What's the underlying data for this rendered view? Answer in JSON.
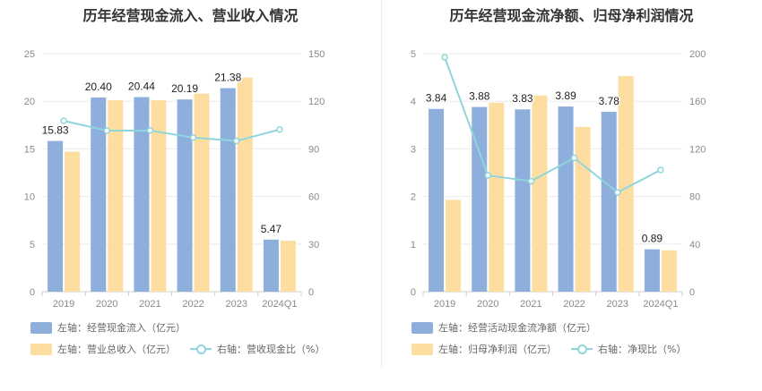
{
  "chart_data": [
    {
      "type": "bar",
      "title": "历年经营现金流入、营业收入情况",
      "categories": [
        "2019",
        "2020",
        "2021",
        "2022",
        "2023",
        "2024Q1"
      ],
      "left_axis": {
        "min": 0,
        "max": 25,
        "ticks": [
          0,
          5,
          10,
          15,
          20,
          25
        ]
      },
      "right_axis": {
        "min": 0,
        "max": 150,
        "ticks": [
          0,
          30,
          60,
          90,
          120,
          150
        ]
      },
      "series": [
        {
          "name": "左轴：经营现金流入（亿元）",
          "kind": "bar",
          "axis": "left",
          "color": "#8eaedc",
          "values": [
            15.83,
            20.4,
            20.44,
            20.19,
            21.38,
            5.47
          ],
          "labels": [
            "15.83",
            "20.40",
            "20.44",
            "20.19",
            "21.38",
            "5.47"
          ]
        },
        {
          "name": "左轴：营业总收入（亿元）",
          "kind": "bar",
          "axis": "left",
          "color": "#fddda0",
          "values": [
            14.7,
            20.1,
            20.1,
            20.8,
            22.5,
            5.35
          ]
        },
        {
          "name": "右轴：营收现金比（%）",
          "kind": "line",
          "axis": "right",
          "color": "#8fd6dc",
          "values": [
            107.7,
            101.5,
            101.6,
            97.1,
            95.0,
            102.2
          ]
        }
      ]
    },
    {
      "type": "bar",
      "title": "历年经营现金流净额、归母净利润情况",
      "categories": [
        "2019",
        "2020",
        "2021",
        "2022",
        "2023",
        "2024Q1"
      ],
      "left_axis": {
        "min": 0,
        "max": 5,
        "ticks": [
          0,
          1,
          2,
          3,
          4,
          5
        ]
      },
      "right_axis": {
        "min": 0,
        "max": 200,
        "ticks": [
          0,
          40,
          80,
          120,
          160,
          200
        ]
      },
      "series": [
        {
          "name": "左轴：经营活动现金流净额（亿元）",
          "kind": "bar",
          "axis": "left",
          "color": "#8eaedc",
          "values": [
            3.84,
            3.88,
            3.83,
            3.89,
            3.78,
            0.89
          ],
          "labels": [
            "3.84",
            "3.88",
            "3.83",
            "3.89",
            "3.78",
            "0.89"
          ]
        },
        {
          "name": "左轴：归母净利润（亿元）",
          "kind": "bar",
          "axis": "left",
          "color": "#fddda0",
          "values": [
            1.93,
            3.97,
            4.12,
            3.46,
            4.53,
            0.87
          ]
        },
        {
          "name": "右轴：净现比（%）",
          "kind": "line",
          "axis": "right",
          "color": "#8fd6dc",
          "values": [
            197.0,
            97.7,
            92.9,
            112.4,
            83.4,
            102.3
          ]
        }
      ]
    }
  ]
}
